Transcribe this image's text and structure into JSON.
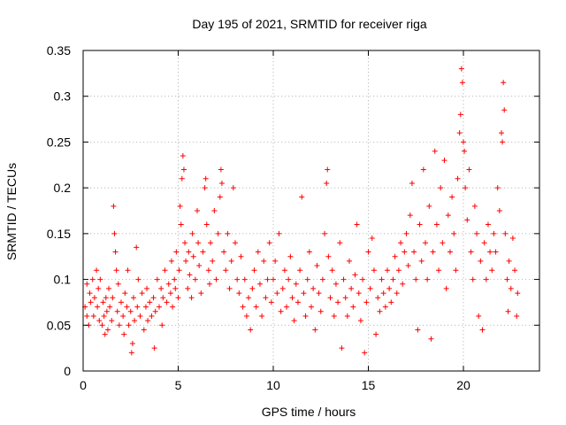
{
  "chart_data": {
    "type": "scatter",
    "title": "Day 195 of 2021, SRMTID for receiver riga",
    "xlabel": "GPS time / hours",
    "ylabel": "SRMTID / TECUs",
    "xlim": [
      0,
      24
    ],
    "ylim": [
      0,
      0.35
    ],
    "xticks": [
      0,
      5,
      10,
      15,
      20
    ],
    "xtick_labels": [
      "0",
      "5",
      "10",
      "15",
      "20"
    ],
    "yticks": [
      0,
      0.05,
      0.1,
      0.15,
      0.2,
      0.25,
      0.3,
      0.35
    ],
    "ytick_labels": [
      "0",
      "0.05",
      "0.1",
      "0.15",
      "0.2",
      "0.25",
      "0.3",
      "0.35"
    ],
    "grid": true,
    "marker": "+",
    "color": "#ff0000",
    "series": [
      {
        "name": "SRMTID",
        "points": [
          [
            0.1,
            0.07
          ],
          [
            0.2,
            0.06
          ],
          [
            0.2,
            0.095
          ],
          [
            0.3,
            0.05
          ],
          [
            0.35,
            0.085
          ],
          [
            0.4,
            0.075
          ],
          [
            0.5,
            0.1
          ],
          [
            0.55,
            0.06
          ],
          [
            0.6,
            0.08
          ],
          [
            0.7,
            0.11
          ],
          [
            0.75,
            0.07
          ],
          [
            0.8,
            0.09
          ],
          [
            0.85,
            0.055
          ],
          [
            0.9,
            0.1
          ],
          [
            1.0,
            0.05
          ],
          [
            1.05,
            0.075
          ],
          [
            1.1,
            0.06
          ],
          [
            1.15,
            0.04
          ],
          [
            1.2,
            0.08
          ],
          [
            1.25,
            0.065
          ],
          [
            1.3,
            0.045
          ],
          [
            1.35,
            0.09
          ],
          [
            1.4,
            0.07
          ],
          [
            1.5,
            0.055
          ],
          [
            1.55,
            0.08
          ],
          [
            1.6,
            0.18
          ],
          [
            1.65,
            0.15
          ],
          [
            1.7,
            0.13
          ],
          [
            1.75,
            0.11
          ],
          [
            1.8,
            0.065
          ],
          [
            1.85,
            0.095
          ],
          [
            1.9,
            0.05
          ],
          [
            2.0,
            0.075
          ],
          [
            2.1,
            0.06
          ],
          [
            2.15,
            0.04
          ],
          [
            2.2,
            0.085
          ],
          [
            2.3,
            0.07
          ],
          [
            2.35,
            0.11
          ],
          [
            2.4,
            0.05
          ],
          [
            2.5,
            0.065
          ],
          [
            2.55,
            0.02
          ],
          [
            2.6,
            0.03
          ],
          [
            2.65,
            0.08
          ],
          [
            2.7,
            0.055
          ],
          [
            2.8,
            0.135
          ],
          [
            2.85,
            0.07
          ],
          [
            2.9,
            0.1
          ],
          [
            3.0,
            0.06
          ],
          [
            3.1,
            0.085
          ],
          [
            3.2,
            0.045
          ],
          [
            3.3,
            0.07
          ],
          [
            3.35,
            0.09
          ],
          [
            3.4,
            0.055
          ],
          [
            3.5,
            0.075
          ],
          [
            3.6,
            0.06
          ],
          [
            3.7,
            0.08
          ],
          [
            3.75,
            0.025
          ],
          [
            3.8,
            0.065
          ],
          [
            3.9,
            0.1
          ],
          [
            4.0,
            0.07
          ],
          [
            4.1,
            0.09
          ],
          [
            4.15,
            0.05
          ],
          [
            4.2,
            0.08
          ],
          [
            4.3,
            0.11
          ],
          [
            4.4,
            0.075
          ],
          [
            4.5,
            0.095
          ],
          [
            4.6,
            0.085
          ],
          [
            4.65,
            0.12
          ],
          [
            4.7,
            0.07
          ],
          [
            4.8,
            0.1
          ],
          [
            4.85,
            0.09
          ],
          [
            4.9,
            0.13
          ],
          [
            5.0,
            0.08
          ],
          [
            5.05,
            0.11
          ],
          [
            5.1,
            0.18
          ],
          [
            5.15,
            0.16
          ],
          [
            5.2,
            0.21
          ],
          [
            5.25,
            0.235
          ],
          [
            5.3,
            0.22
          ],
          [
            5.35,
            0.14
          ],
          [
            5.4,
            0.12
          ],
          [
            5.5,
            0.09
          ],
          [
            5.55,
            0.13
          ],
          [
            5.6,
            0.105
          ],
          [
            5.7,
            0.08
          ],
          [
            5.75,
            0.15
          ],
          [
            5.8,
            0.125
          ],
          [
            5.9,
            0.1
          ],
          [
            6.0,
            0.175
          ],
          [
            6.05,
            0.14
          ],
          [
            6.1,
            0.115
          ],
          [
            6.2,
            0.085
          ],
          [
            6.3,
            0.13
          ],
          [
            6.4,
            0.2
          ],
          [
            6.45,
            0.21
          ],
          [
            6.5,
            0.16
          ],
          [
            6.6,
            0.11
          ],
          [
            6.65,
            0.095
          ],
          [
            6.7,
            0.14
          ],
          [
            6.8,
            0.12
          ],
          [
            6.9,
            0.175
          ],
          [
            7.0,
            0.1
          ],
          [
            7.1,
            0.15
          ],
          [
            7.2,
            0.19
          ],
          [
            7.25,
            0.22
          ],
          [
            7.3,
            0.205
          ],
          [
            7.4,
            0.13
          ],
          [
            7.5,
            0.11
          ],
          [
            7.6,
            0.15
          ],
          [
            7.7,
            0.09
          ],
          [
            7.8,
            0.12
          ],
          [
            7.9,
            0.2
          ],
          [
            8.0,
            0.14
          ],
          [
            8.1,
            0.1
          ],
          [
            8.2,
            0.085
          ],
          [
            8.3,
            0.125
          ],
          [
            8.4,
            0.07
          ],
          [
            8.5,
            0.1
          ],
          [
            8.6,
            0.06
          ],
          [
            8.7,
            0.08
          ],
          [
            8.8,
            0.045
          ],
          [
            8.9,
            0.09
          ],
          [
            9.0,
            0.11
          ],
          [
            9.1,
            0.07
          ],
          [
            9.2,
            0.13
          ],
          [
            9.3,
            0.095
          ],
          [
            9.4,
            0.06
          ],
          [
            9.5,
            0.12
          ],
          [
            9.6,
            0.08
          ],
          [
            9.7,
            0.1
          ],
          [
            9.8,
            0.14
          ],
          [
            9.9,
            0.075
          ],
          [
            10.0,
            0.1
          ],
          [
            10.1,
            0.12
          ],
          [
            10.2,
            0.085
          ],
          [
            10.3,
            0.15
          ],
          [
            10.4,
            0.065
          ],
          [
            10.5,
            0.09
          ],
          [
            10.6,
            0.11
          ],
          [
            10.7,
            0.07
          ],
          [
            10.8,
            0.1
          ],
          [
            10.9,
            0.125
          ],
          [
            11.0,
            0.08
          ],
          [
            11.1,
            0.055
          ],
          [
            11.2,
            0.095
          ],
          [
            11.3,
            0.075
          ],
          [
            11.4,
            0.11
          ],
          [
            11.5,
            0.19
          ],
          [
            11.6,
            0.085
          ],
          [
            11.7,
            0.06
          ],
          [
            11.8,
            0.1
          ],
          [
            11.9,
            0.13
          ],
          [
            12.0,
            0.07
          ],
          [
            12.1,
            0.09
          ],
          [
            12.2,
            0.045
          ],
          [
            12.3,
            0.115
          ],
          [
            12.4,
            0.085
          ],
          [
            12.5,
            0.065
          ],
          [
            12.6,
            0.1
          ],
          [
            12.7,
            0.15
          ],
          [
            12.8,
            0.205
          ],
          [
            12.85,
            0.22
          ],
          [
            12.9,
            0.125
          ],
          [
            13.0,
            0.08
          ],
          [
            13.1,
            0.11
          ],
          [
            13.2,
            0.06
          ],
          [
            13.3,
            0.095
          ],
          [
            13.4,
            0.075
          ],
          [
            13.5,
            0.14
          ],
          [
            13.6,
            0.025
          ],
          [
            13.7,
            0.1
          ],
          [
            13.8,
            0.08
          ],
          [
            13.9,
            0.06
          ],
          [
            14.0,
            0.12
          ],
          [
            14.1,
            0.09
          ],
          [
            14.2,
            0.07
          ],
          [
            14.3,
            0.105
          ],
          [
            14.4,
            0.16
          ],
          [
            14.5,
            0.085
          ],
          [
            14.6,
            0.055
          ],
          [
            14.7,
            0.1
          ],
          [
            14.8,
            0.02
          ],
          [
            14.9,
            0.075
          ],
          [
            15.0,
            0.13
          ],
          [
            15.1,
            0.09
          ],
          [
            15.2,
            0.145
          ],
          [
            15.3,
            0.11
          ],
          [
            15.4,
            0.04
          ],
          [
            15.5,
            0.08
          ],
          [
            15.6,
            0.065
          ],
          [
            15.7,
            0.1
          ],
          [
            15.8,
            0.085
          ],
          [
            15.9,
            0.07
          ],
          [
            16.0,
            0.11
          ],
          [
            16.1,
            0.09
          ],
          [
            16.2,
            0.075
          ],
          [
            16.3,
            0.1
          ],
          [
            16.4,
            0.125
          ],
          [
            16.5,
            0.085
          ],
          [
            16.6,
            0.11
          ],
          [
            16.7,
            0.14
          ],
          [
            16.8,
            0.095
          ],
          [
            16.9,
            0.13
          ],
          [
            17.0,
            0.15
          ],
          [
            17.1,
            0.115
          ],
          [
            17.2,
            0.17
          ],
          [
            17.3,
            0.205
          ],
          [
            17.4,
            0.13
          ],
          [
            17.5,
            0.1
          ],
          [
            17.6,
            0.045
          ],
          [
            17.7,
            0.16
          ],
          [
            17.8,
            0.12
          ],
          [
            17.9,
            0.22
          ],
          [
            18.0,
            0.14
          ],
          [
            18.1,
            0.1
          ],
          [
            18.2,
            0.18
          ],
          [
            18.3,
            0.035
          ],
          [
            18.4,
            0.13
          ],
          [
            18.5,
            0.24
          ],
          [
            18.6,
            0.16
          ],
          [
            18.7,
            0.11
          ],
          [
            18.8,
            0.2
          ],
          [
            18.9,
            0.14
          ],
          [
            19.0,
            0.23
          ],
          [
            19.1,
            0.09
          ],
          [
            19.2,
            0.17
          ],
          [
            19.3,
            0.13
          ],
          [
            19.4,
            0.19
          ],
          [
            19.5,
            0.15
          ],
          [
            19.6,
            0.11
          ],
          [
            19.7,
            0.21
          ],
          [
            19.8,
            0.26
          ],
          [
            19.85,
            0.28
          ],
          [
            19.9,
            0.33
          ],
          [
            19.95,
            0.315
          ],
          [
            20.0,
            0.25
          ],
          [
            20.05,
            0.24
          ],
          [
            20.1,
            0.2
          ],
          [
            20.2,
            0.165
          ],
          [
            20.3,
            0.22
          ],
          [
            20.4,
            0.13
          ],
          [
            20.5,
            0.1
          ],
          [
            20.6,
            0.18
          ],
          [
            20.7,
            0.15
          ],
          [
            20.8,
            0.06
          ],
          [
            20.9,
            0.12
          ],
          [
            21.0,
            0.045
          ],
          [
            21.1,
            0.14
          ],
          [
            21.2,
            0.1
          ],
          [
            21.3,
            0.16
          ],
          [
            21.4,
            0.13
          ],
          [
            21.5,
            0.11
          ],
          [
            21.6,
            0.15
          ],
          [
            21.7,
            0.13
          ],
          [
            21.8,
            0.2
          ],
          [
            21.9,
            0.175
          ],
          [
            22.0,
            0.26
          ],
          [
            22.05,
            0.25
          ],
          [
            22.1,
            0.315
          ],
          [
            22.15,
            0.285
          ],
          [
            22.2,
            0.15
          ],
          [
            22.3,
            0.1
          ],
          [
            22.35,
            0.065
          ],
          [
            22.4,
            0.12
          ],
          [
            22.5,
            0.09
          ],
          [
            22.6,
            0.145
          ],
          [
            22.7,
            0.11
          ],
          [
            22.8,
            0.06
          ],
          [
            22.85,
            0.085
          ]
        ]
      }
    ]
  }
}
